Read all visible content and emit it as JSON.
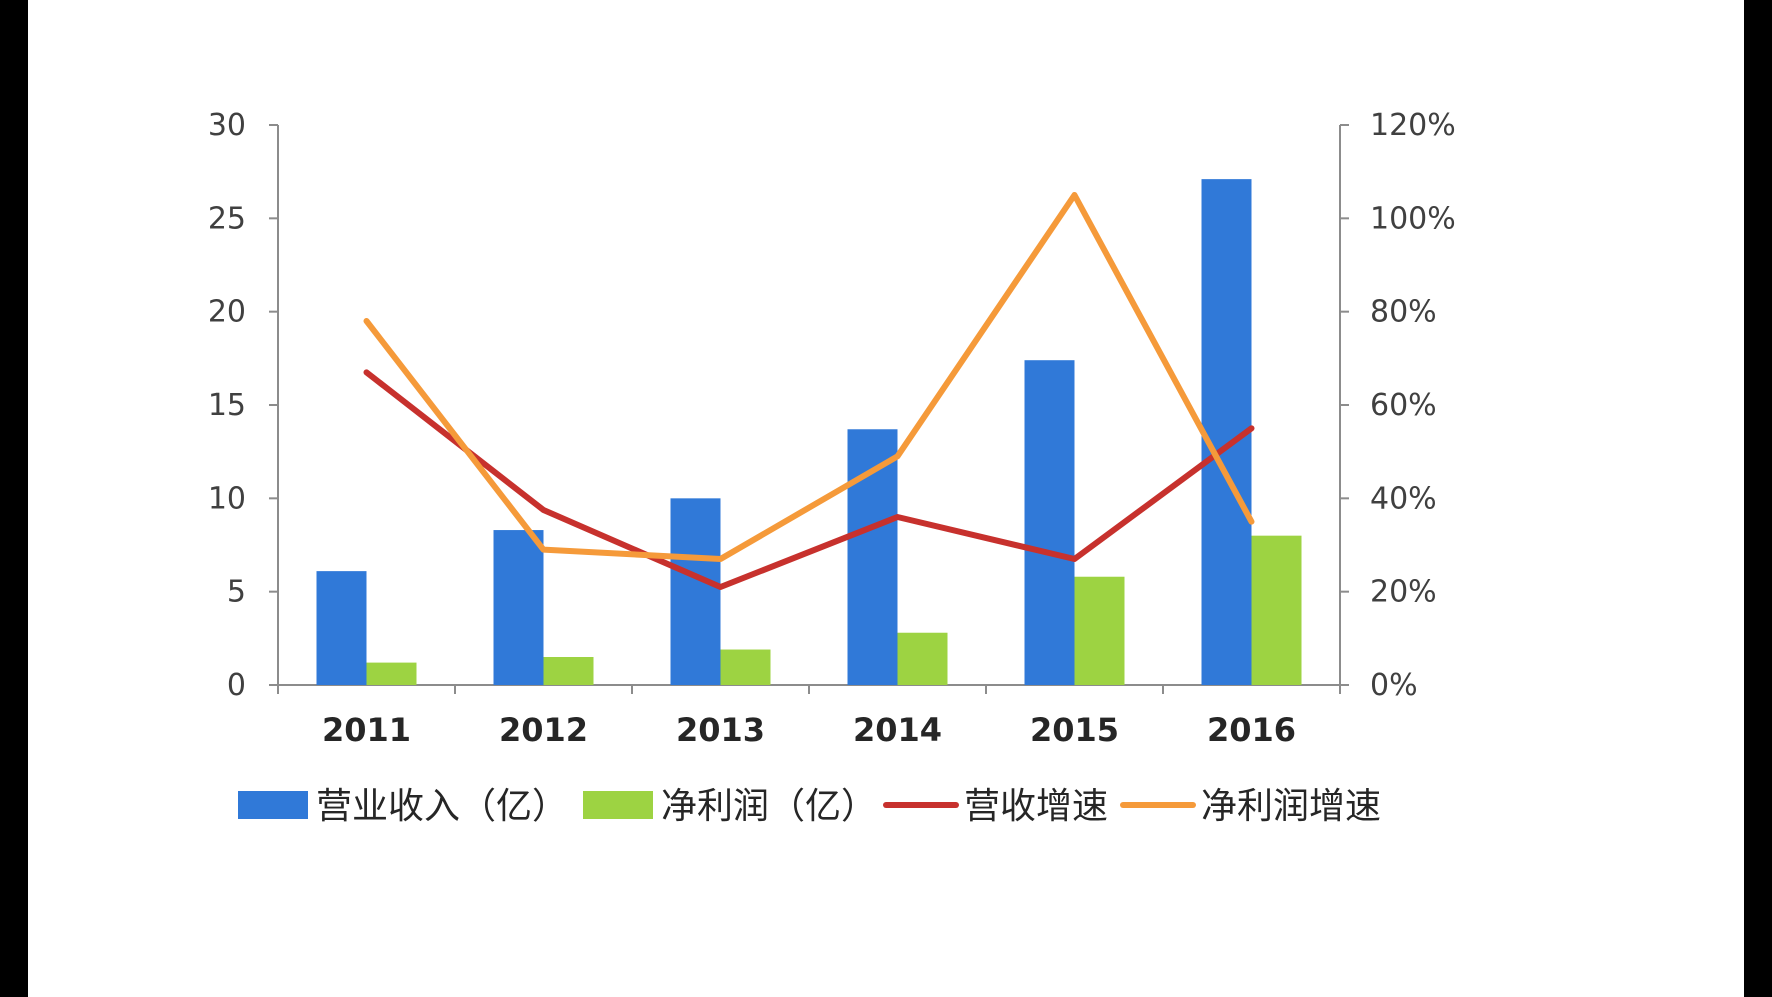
{
  "chart_data": {
    "type": "bar",
    "categories": [
      "2011",
      "2012",
      "2013",
      "2014",
      "2015",
      "2016"
    ],
    "series": [
      {
        "name": "营业收入（亿）",
        "kind": "bar",
        "axis": "left",
        "color": "#3079d8",
        "values": [
          6.1,
          8.3,
          10.0,
          13.7,
          17.4,
          27.1
        ]
      },
      {
        "name": "净利润（亿）",
        "kind": "bar",
        "axis": "left",
        "color": "#9dd342",
        "values": [
          1.2,
          1.5,
          1.9,
          2.8,
          5.8,
          8.0
        ]
      },
      {
        "name": "营收增速",
        "kind": "line",
        "axis": "right",
        "color": "#c7312d",
        "values": [
          0.67,
          0.375,
          0.21,
          0.36,
          0.27,
          0.55
        ]
      },
      {
        "name": "净利润增速",
        "kind": "line",
        "axis": "right",
        "color": "#f59a3a",
        "values": [
          0.78,
          0.29,
          0.27,
          0.49,
          1.05,
          0.35
        ]
      }
    ],
    "y_left": {
      "ticks": [
        "0",
        "5",
        "10",
        "15",
        "20",
        "25",
        "30"
      ],
      "min": 0,
      "max": 30
    },
    "y_right": {
      "ticks": [
        "0%",
        "20%",
        "40%",
        "60%",
        "80%",
        "100%",
        "120%"
      ],
      "min": 0,
      "max": 1.2
    },
    "grid": false,
    "legend_position": "bottom"
  }
}
